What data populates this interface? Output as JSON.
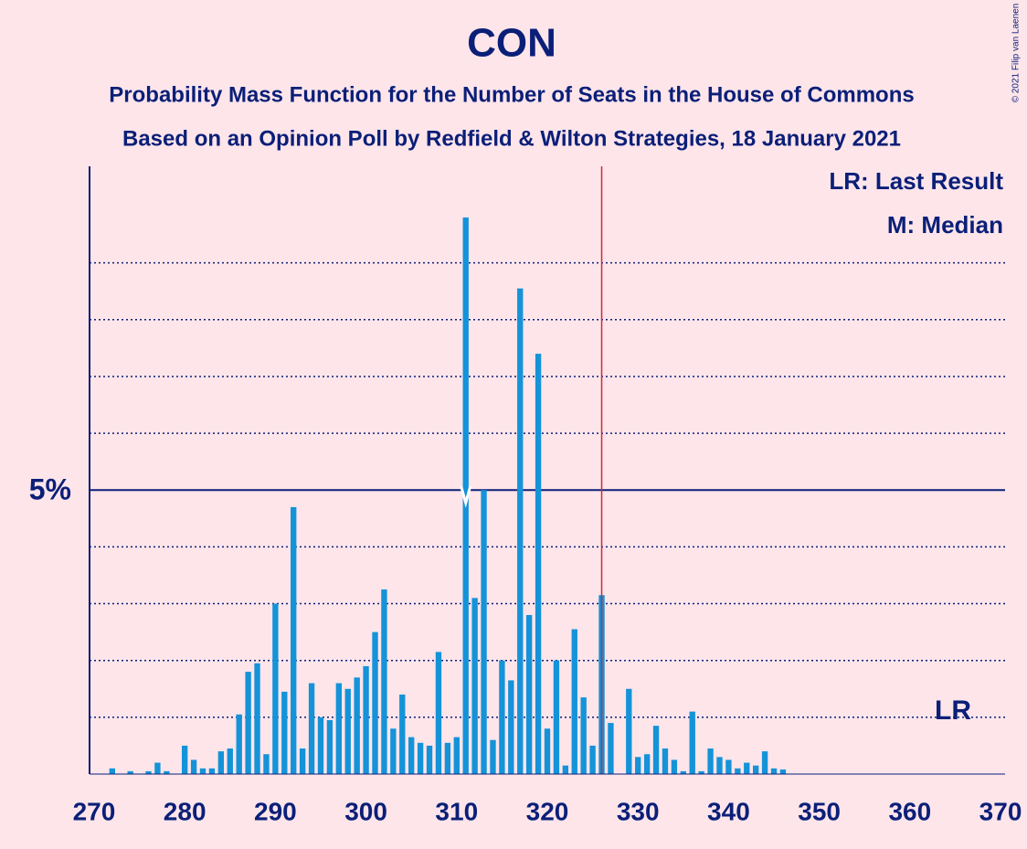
{
  "chart_data": {
    "type": "bar",
    "title": "CON",
    "subtitle": "Probability Mass Function for the Number of Seats in the House of Commons",
    "subtitle2": "Based on an Opinion Poll by Redfield & Wilton Strategies, 18 January 2021",
    "copyright": "© 2021 Filip van Laenen",
    "legend": [
      "LR: Last Result",
      "M: Median"
    ],
    "last_result_label": "LR",
    "median": 311,
    "last_result": 326,
    "color": "#1493d8",
    "last_result_color": "#d2283c",
    "x": [
      270,
      271,
      272,
      273,
      274,
      275,
      276,
      277,
      278,
      279,
      280,
      281,
      282,
      283,
      284,
      285,
      286,
      287,
      288,
      289,
      290,
      291,
      292,
      293,
      294,
      295,
      296,
      297,
      298,
      299,
      300,
      301,
      302,
      303,
      304,
      305,
      306,
      307,
      308,
      309,
      310,
      311,
      312,
      313,
      314,
      315,
      316,
      317,
      318,
      319,
      320,
      321,
      322,
      323,
      324,
      325,
      326,
      327,
      328,
      329,
      330,
      331,
      332,
      333,
      334,
      335,
      336,
      337,
      338,
      339,
      340,
      341,
      342,
      343,
      344,
      345,
      346,
      347,
      348,
      349,
      350,
      351,
      352,
      353,
      354,
      355,
      356,
      357,
      358,
      359,
      360,
      361,
      362,
      363,
      364,
      365,
      366,
      367,
      368,
      369,
      370
    ],
    "values": [
      0,
      0,
      0.1,
      0,
      0.05,
      0,
      0.05,
      0.2,
      0.05,
      0,
      0.5,
      0.25,
      0.1,
      0.1,
      0.4,
      0.45,
      1.05,
      1.8,
      1.95,
      0.35,
      3.0,
      1.45,
      4.7,
      0.45,
      1.6,
      1.0,
      0.95,
      1.6,
      1.5,
      1.7,
      1.9,
      2.5,
      3.25,
      0.8,
      1.4,
      0.65,
      0.55,
      0.5,
      2.15,
      0.55,
      0.65,
      9.8,
      3.1,
      5.0,
      0.6,
      2.0,
      1.65,
      8.55,
      2.8,
      7.4,
      0.8,
      2.0,
      0.15,
      2.55,
      1.35,
      0.5,
      3.15,
      0.9,
      0,
      1.5,
      0.3,
      0.35,
      0.85,
      0.45,
      0.25,
      0.05,
      1.1,
      0.05,
      0.45,
      0.3,
      0.25,
      0.1,
      0.2,
      0.15,
      0.4,
      0.1,
      0.08,
      0,
      0,
      0,
      0,
      0,
      0,
      0,
      0,
      0,
      0,
      0,
      0,
      0,
      0,
      0,
      0,
      0,
      0,
      0,
      0,
      0,
      0,
      0,
      0
    ],
    "xlim": [
      269.5,
      370.5
    ],
    "xticks": [
      270,
      280,
      290,
      300,
      310,
      320,
      330,
      340,
      350,
      360,
      370
    ],
    "ylim": [
      0,
      10.7
    ],
    "yticks": [
      {
        "value": 5,
        "label": "5%"
      }
    ],
    "minor_gridlines": [
      1,
      2,
      3,
      4,
      6,
      7,
      8,
      9
    ]
  }
}
